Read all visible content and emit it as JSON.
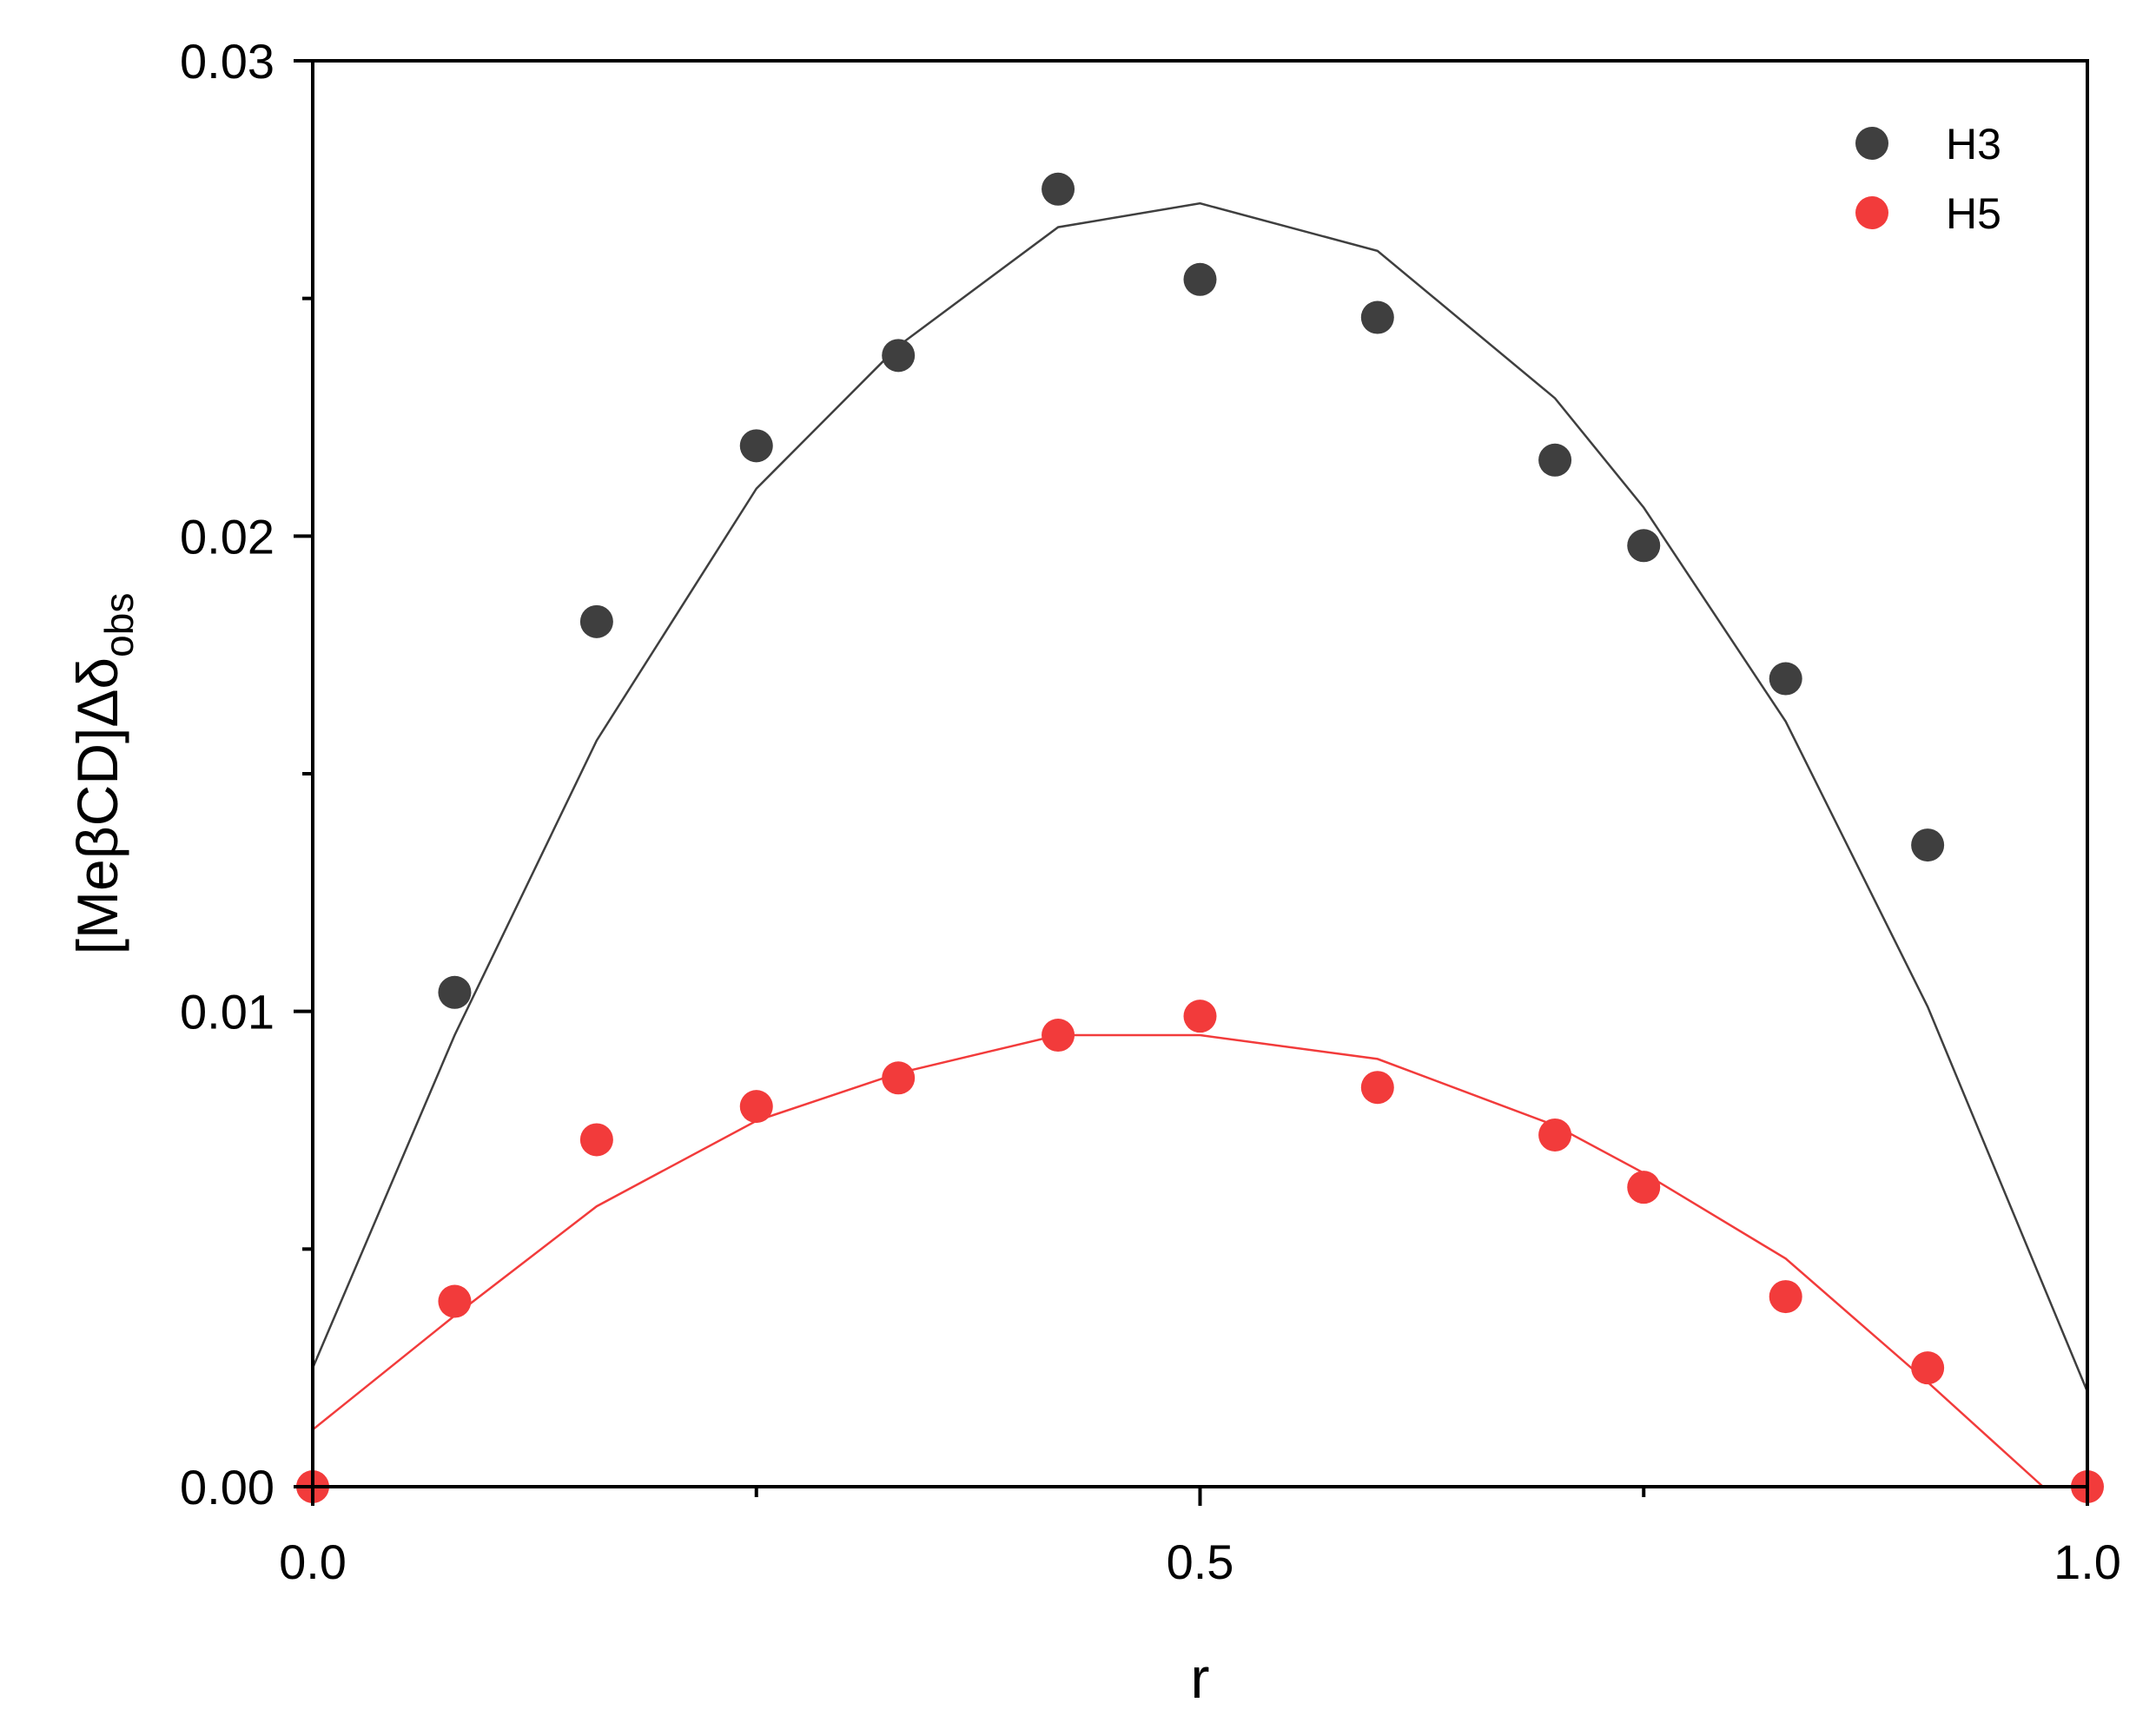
{
  "chart_data": {
    "type": "scatter",
    "xlabel": "r",
    "ylabel": {
      "main": "[MeβCD]Δδ",
      "subscript": "obs"
    },
    "xlim": [
      0.0,
      1.0
    ],
    "ylim": [
      0.0,
      0.03
    ],
    "xticks": [
      0.0,
      0.5,
      1.0
    ],
    "xtick_labels": [
      "0.0",
      "0.5",
      "1.0"
    ],
    "xminor_ticks": [
      0.25,
      0.75
    ],
    "yticks": [
      0.0,
      0.01,
      0.02,
      0.03
    ],
    "ytick_labels": [
      "0.00",
      "0.01",
      "0.02",
      "0.03"
    ],
    "yminor_ticks": [
      0.005,
      0.015,
      0.025
    ],
    "grid": false,
    "legend_position": "top-right",
    "series": [
      {
        "name": "H3",
        "color": "#3f3f3f",
        "points": {
          "x": [
            0.08,
            0.16,
            0.25,
            0.33,
            0.42,
            0.5,
            0.6,
            0.7,
            0.75,
            0.83,
            0.91
          ],
          "y": [
            0.0104,
            0.0182,
            0.0219,
            0.0238,
            0.0273,
            0.0254,
            0.0246,
            0.0216,
            0.0198,
            0.017,
            0.0135
          ]
        },
        "fit": {
          "x": [
            0.0,
            0.08,
            0.16,
            0.25,
            0.33,
            0.42,
            0.5,
            0.6,
            0.7,
            0.75,
            0.83,
            0.91,
            1.0
          ],
          "y": [
            0.0025,
            0.0095,
            0.0157,
            0.021,
            0.024,
            0.0265,
            0.027,
            0.026,
            0.0229,
            0.0206,
            0.0161,
            0.0101,
            0.002
          ]
        }
      },
      {
        "name": "H5",
        "color": "#f23b3b",
        "points": {
          "x": [
            0.0,
            0.08,
            0.16,
            0.25,
            0.33,
            0.42,
            0.5,
            0.6,
            0.7,
            0.75,
            0.83,
            0.91,
            1.0
          ],
          "y": [
            0.0,
            0.0039,
            0.0073,
            0.008,
            0.0086,
            0.0095,
            0.0099,
            0.0084,
            0.0074,
            0.0063,
            0.004,
            0.0025,
            0.0
          ]
        },
        "fit": {
          "x": [
            0.0,
            0.08,
            0.16,
            0.25,
            0.33,
            0.42,
            0.5,
            0.6,
            0.7,
            0.75,
            0.83,
            0.91,
            0.975
          ],
          "y": [
            0.0012,
            0.0036,
            0.0059,
            0.0077,
            0.0087,
            0.0095,
            0.0095,
            0.009,
            0.0076,
            0.0066,
            0.0048,
            0.0022,
            0.0
          ]
        }
      }
    ]
  }
}
